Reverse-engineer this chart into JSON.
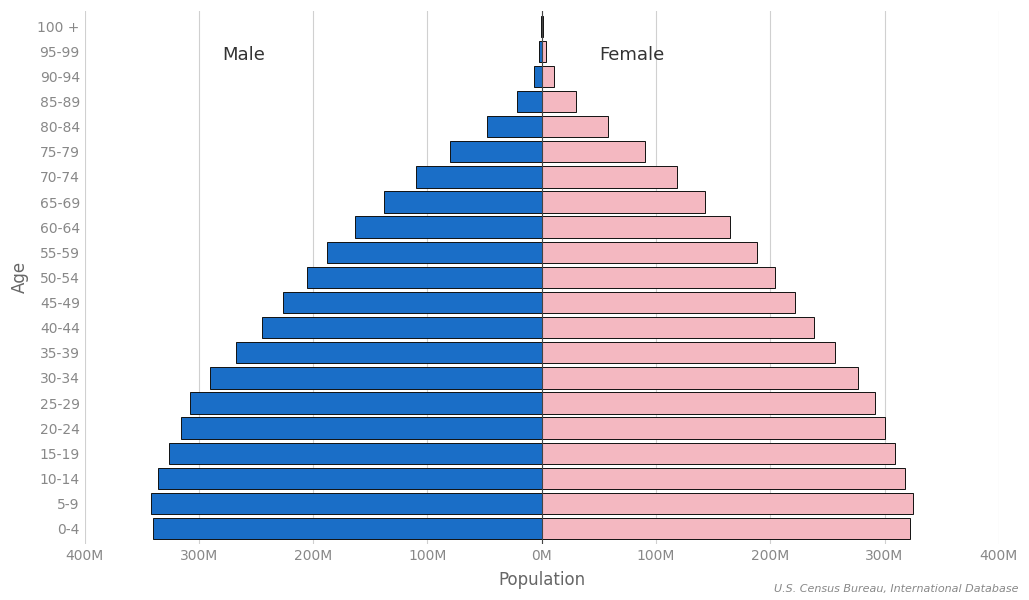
{
  "age_groups": [
    "0-4",
    "5-9",
    "10-14",
    "15-19",
    "20-24",
    "25-29",
    "30-34",
    "35-39",
    "40-44",
    "45-49",
    "50-54",
    "55-59",
    "60-64",
    "65-69",
    "70-74",
    "75-79",
    "80-84",
    "85-89",
    "90-94",
    "95-99",
    "100 +"
  ],
  "male": [
    340,
    342,
    336,
    326,
    316,
    308,
    290,
    268,
    245,
    226,
    205,
    188,
    163,
    138,
    110,
    80,
    48,
    22,
    7,
    2,
    0.4
  ],
  "female": [
    322,
    325,
    318,
    309,
    300,
    292,
    277,
    257,
    238,
    222,
    204,
    188,
    165,
    143,
    118,
    90,
    58,
    30,
    11,
    3.5,
    0.9
  ],
  "male_color": "#1a6ec7",
  "female_color": "#f4b8c1",
  "bar_edge_color": "#111111",
  "background_color": "#ffffff",
  "xlabel": "Population",
  "ylabel": "Age",
  "male_label": "Male",
  "female_label": "Female",
  "source_text": "U.S. Census Bureau, International Database",
  "xlim": 400,
  "tick_step": 100,
  "grid_color": "#d0d0d0",
  "tick_label_color": "#888888",
  "axis_label_color": "#666666",
  "bar_height": 0.85,
  "label_fontsize": 10,
  "mf_label_fontsize": 13,
  "axis_label_fontsize": 12
}
